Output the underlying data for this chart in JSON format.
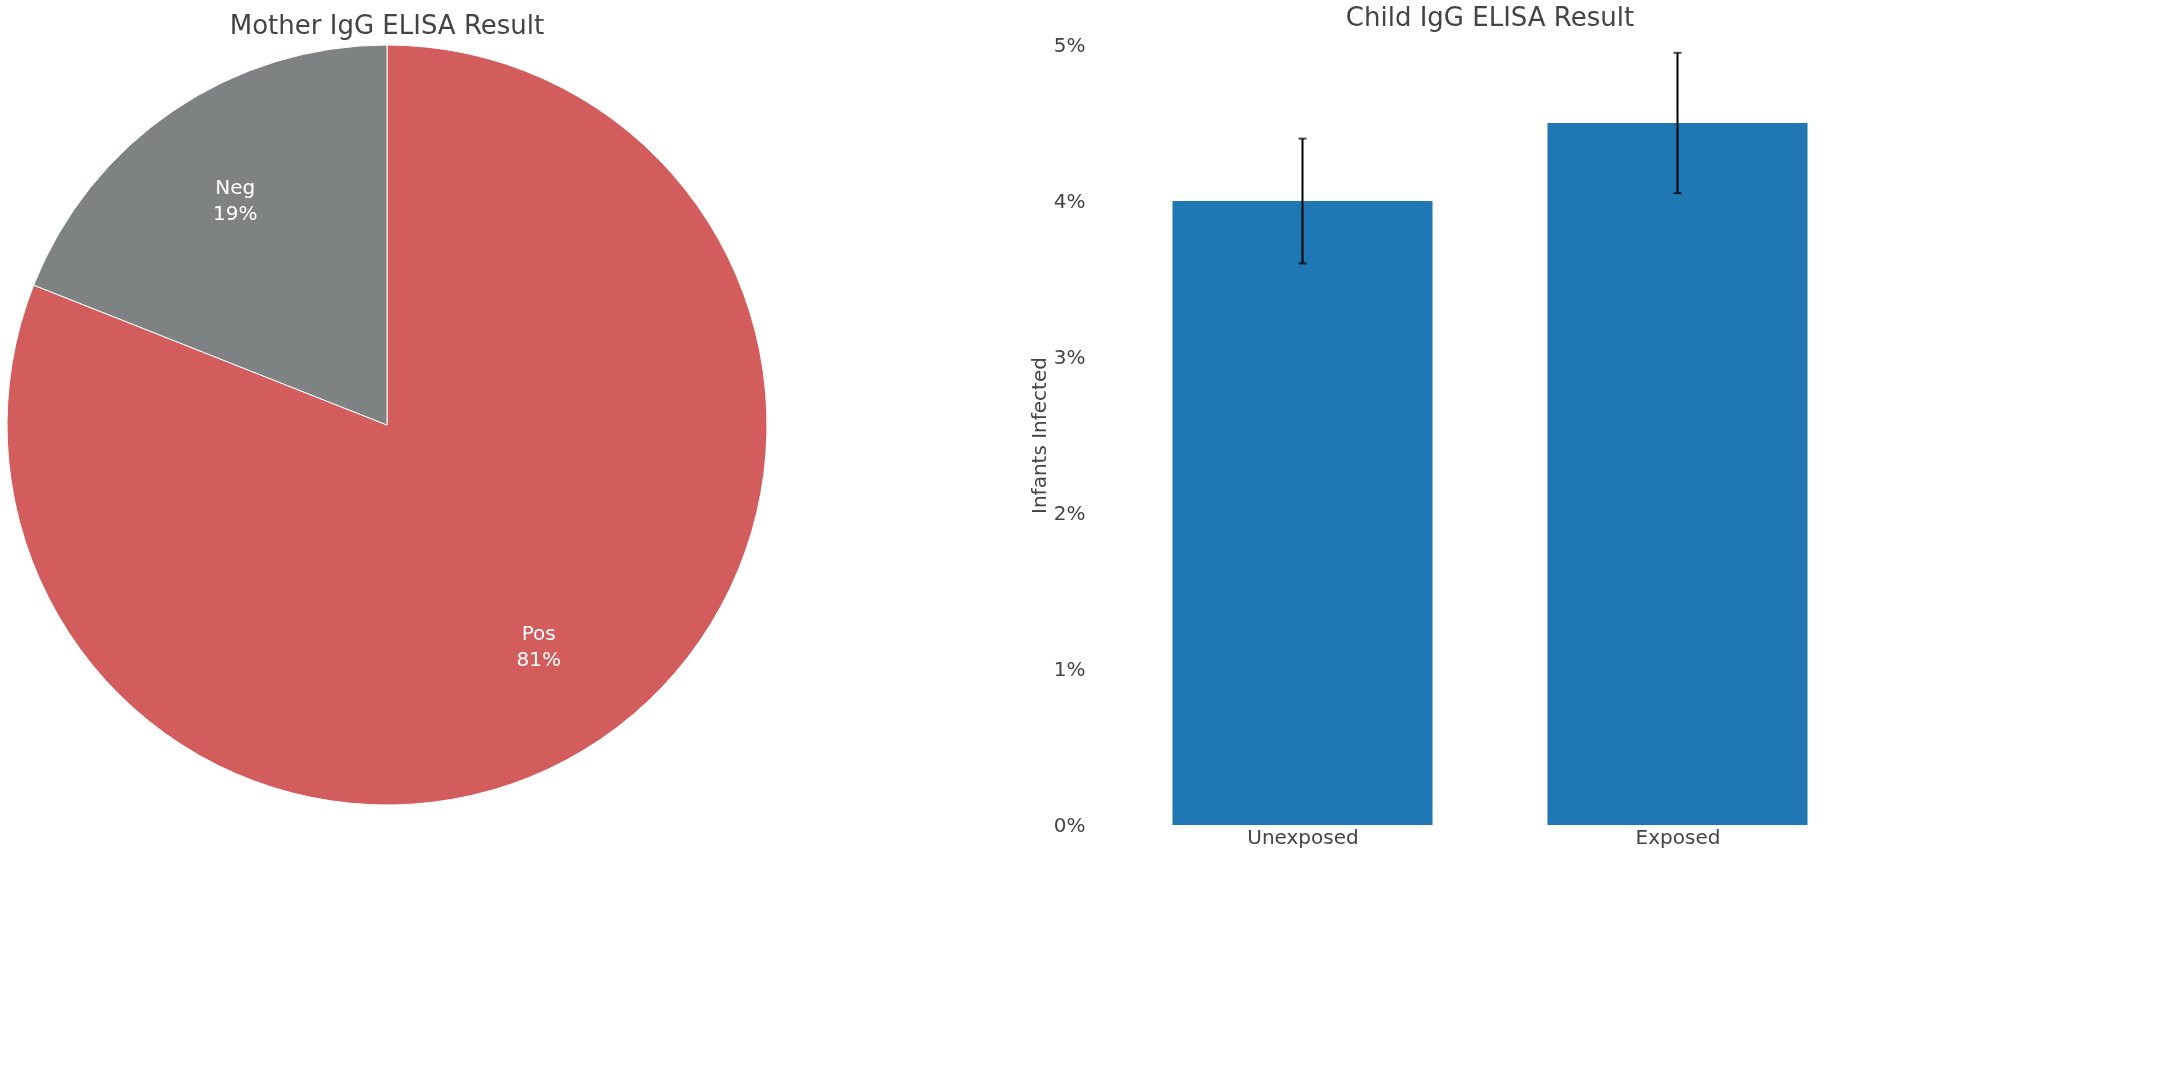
{
  "chart_data": [
    {
      "type": "pie",
      "title": "Mother IgG ELISA Result",
      "categories": [
        "Pos",
        "Neg"
      ],
      "values": [
        81,
        19
      ],
      "colors": [
        "#d35c5c",
        "#7f8282"
      ],
      "value_labels": [
        "81%",
        "19%"
      ],
      "legend": false
    },
    {
      "type": "bar",
      "title": "Child IgG ELISA Result",
      "ylabel": "Infants Infected",
      "categories": [
        "Unexposed",
        "Exposed"
      ],
      "values": [
        4.0,
        4.5
      ],
      "errors": [
        0.4,
        0.45
      ],
      "color": "#1f77b4",
      "ylim": [
        0,
        5
      ],
      "yticks": [
        {
          "value": 0,
          "label": "0%"
        },
        {
          "value": 1,
          "label": "1%"
        },
        {
          "value": 2,
          "label": "2%"
        },
        {
          "value": 3,
          "label": "3%"
        },
        {
          "value": 4,
          "label": "4%"
        },
        {
          "value": 5,
          "label": "5%"
        }
      ],
      "grid": false
    }
  ]
}
